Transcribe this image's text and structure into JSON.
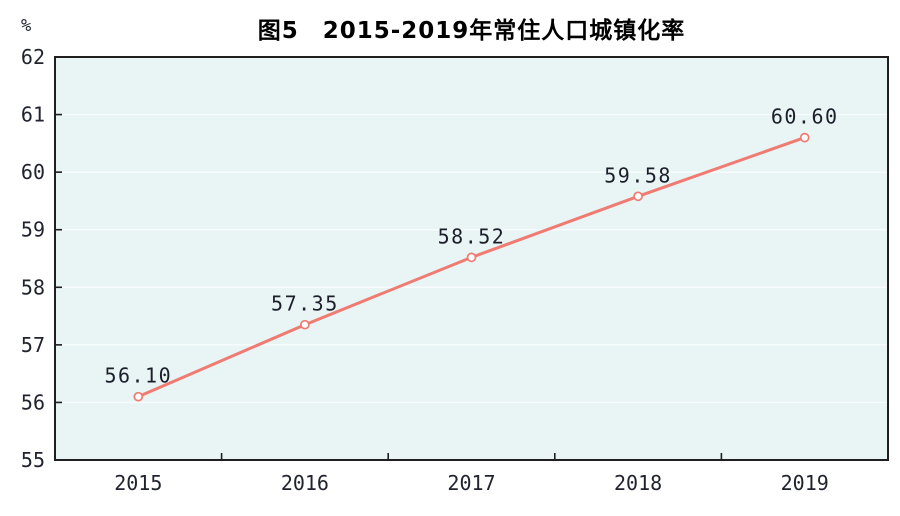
{
  "chart_data": {
    "type": "line",
    "title": "图5　2015-2019年常住人口城镇化率",
    "unit_label": "%",
    "xlabel": "",
    "ylabel": "%",
    "categories": [
      "2015",
      "2016",
      "2017",
      "2018",
      "2019"
    ],
    "series": [
      {
        "name": "常住人口城镇化率",
        "values": [
          56.1,
          57.35,
          58.52,
          59.58,
          60.6
        ]
      }
    ],
    "data_labels": [
      "56.10",
      "57.35",
      "58.52",
      "59.58",
      "60.60"
    ],
    "ylim": [
      55,
      62
    ],
    "yticks": [
      55,
      56,
      57,
      58,
      59,
      60,
      61,
      62
    ],
    "ytick_step": 1,
    "grid": "horizontal-faint",
    "legend_position": "none",
    "marker": "open-circle",
    "colors": {
      "line": "#ef7b72",
      "marker_fill": "#fffdfd",
      "plot_background": "#e9f4f5",
      "plot_border": "#1f1f1f",
      "gridline": "#f8fcfc",
      "text": "#21232e",
      "title_text": "#000000"
    }
  }
}
